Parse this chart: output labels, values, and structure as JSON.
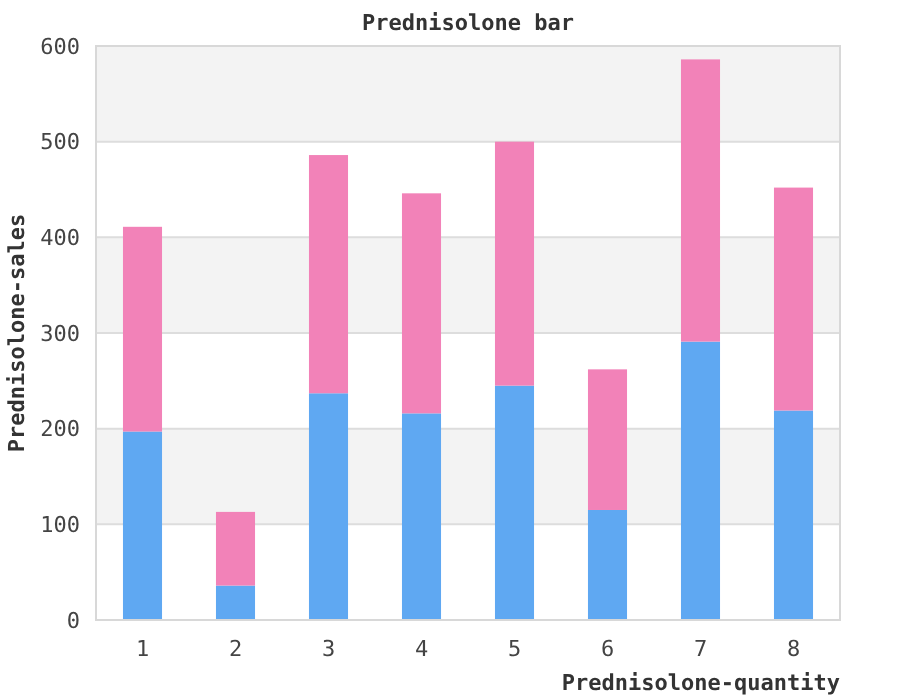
{
  "chart_data": {
    "type": "bar",
    "title": "Prednisolone bar",
    "xlabel": "Prednisolone-quantity",
    "ylabel": "Prednisolone-sales",
    "categories": [
      "1",
      "2",
      "3",
      "4",
      "5",
      "6",
      "7",
      "8"
    ],
    "stacked": true,
    "series": [
      {
        "color": "#5fa8f2",
        "values": [
          197,
          36,
          237,
          216,
          245,
          115,
          291,
          219
        ]
      },
      {
        "color": "#f282b8",
        "values": [
          214,
          77,
          249,
          230,
          255,
          147,
          295,
          233
        ]
      }
    ],
    "ylim": [
      0,
      600
    ],
    "yticks": [
      0,
      100,
      200,
      300,
      400,
      500,
      600
    ],
    "grid": "y"
  }
}
